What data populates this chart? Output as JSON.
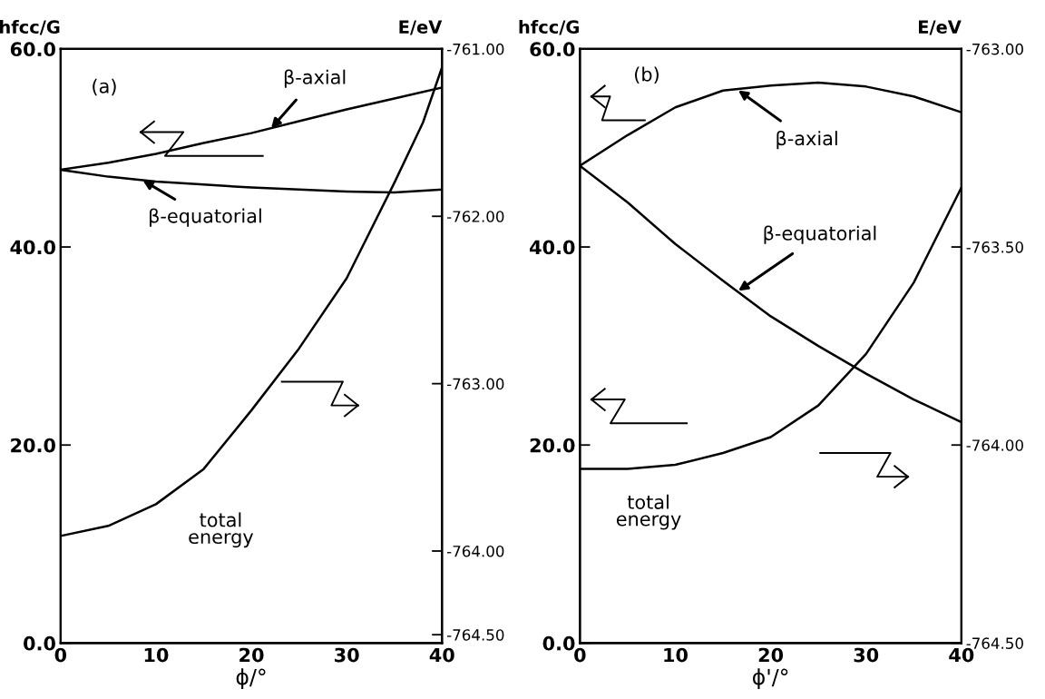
{
  "chart_data": [
    {
      "type": "line",
      "x": [
        0,
        5,
        10,
        15,
        20,
        25,
        30,
        35,
        40
      ],
      "xlim": [
        0,
        40
      ],
      "xticks": [
        0,
        10,
        20,
        30,
        40
      ],
      "xlabel": "ϕ/°",
      "ylabel": "hfcc/G",
      "y2label": "E/eV",
      "ylim": [
        0,
        60
      ],
      "yticks": [
        {
          "value": 0,
          "label": "0.0"
        },
        {
          "value": 20,
          "label": "20.0"
        },
        {
          "value": 40,
          "label": "40.0"
        },
        {
          "value": 60,
          "label": "60.0"
        }
      ],
      "y2lim": [
        -764.55,
        -761.0
      ],
      "y2ticks": [
        {
          "value": -764.5,
          "label": "-764.50"
        },
        {
          "value": -764.0,
          "label": "-764.00"
        },
        {
          "value": -763.0,
          "label": "-763.00"
        },
        {
          "value": -762.0,
          "label": "-762.00"
        },
        {
          "value": -761.0,
          "label": "-761.00"
        }
      ],
      "series": [
        {
          "color": "#000000",
          "values": [
            47.8,
            48.5,
            49.4,
            50.5,
            51.5,
            52.7,
            53.9,
            55.0,
            56.1
          ]
        },
        {
          "color": "#000000",
          "values": [
            47.8,
            47.1,
            46.6,
            46.3,
            46.0,
            45.8,
            45.6,
            45.5,
            45.8
          ]
        },
        {
          "color": "#000000",
          "axis": "y2",
          "x": [
            0,
            5,
            10,
            15,
            20,
            25,
            30,
            35,
            38,
            40
          ],
          "values": [
            -763.91,
            -763.85,
            -763.72,
            -763.51,
            -763.16,
            -762.79,
            -762.37,
            -761.8,
            -761.44,
            -761.11
          ]
        }
      ],
      "annotations": [
        "(a)",
        {
          "text": "β-axial",
          "x": 22,
          "y": 51.9
        },
        {
          "text": "β-equatorial",
          "x": 8.5,
          "y": 46.8
        },
        "total\nenergy"
      ],
      "grid": false
    },
    {
      "type": "line",
      "x": [
        0,
        5,
        10,
        15,
        20,
        25,
        30,
        35,
        40
      ],
      "xlim": [
        0,
        40
      ],
      "xticks": [
        0,
        10,
        20,
        30,
        40
      ],
      "xlabel": "ϕ'/°",
      "ylabel": "hfcc/G",
      "y2label": "E/eV",
      "ylim": [
        0,
        60
      ],
      "yticks": [
        {
          "value": 0,
          "label": "0.0"
        },
        {
          "value": 20,
          "label": "20.0"
        },
        {
          "value": 40,
          "label": "40.0"
        },
        {
          "value": 60,
          "label": "60.0"
        }
      ],
      "y2lim": [
        -764.5,
        -763.0
      ],
      "y2ticks": [
        {
          "value": -764.5,
          "label": "-764.50"
        },
        {
          "value": -764.0,
          "label": "-764.00"
        },
        {
          "value": -763.5,
          "label": "-763.50"
        },
        {
          "value": -763.0,
          "label": "-763.00"
        }
      ],
      "series": [
        {
          "color": "#000000",
          "values": [
            48.2,
            51.3,
            54.1,
            55.8,
            56.3,
            56.6,
            56.2,
            55.2,
            53.6
          ]
        },
        {
          "color": "#000000",
          "values": [
            48.2,
            44.5,
            40.3,
            36.6,
            33.0,
            30.0,
            27.2,
            24.6,
            22.3
          ]
        },
        {
          "color": "#000000",
          "axis": "y2",
          "values": [
            -764.06,
            -764.06,
            -764.05,
            -764.02,
            -763.98,
            -763.9,
            -763.77,
            -763.59,
            -763.35
          ]
        }
      ],
      "annotations": [
        "(b)",
        {
          "text": "β-axial",
          "x": 16.5,
          "y": 55.9
        },
        {
          "text": "β-equatorial",
          "x": 16.5,
          "y": 35.5
        },
        "total\nenergy"
      ],
      "grid": false
    }
  ]
}
